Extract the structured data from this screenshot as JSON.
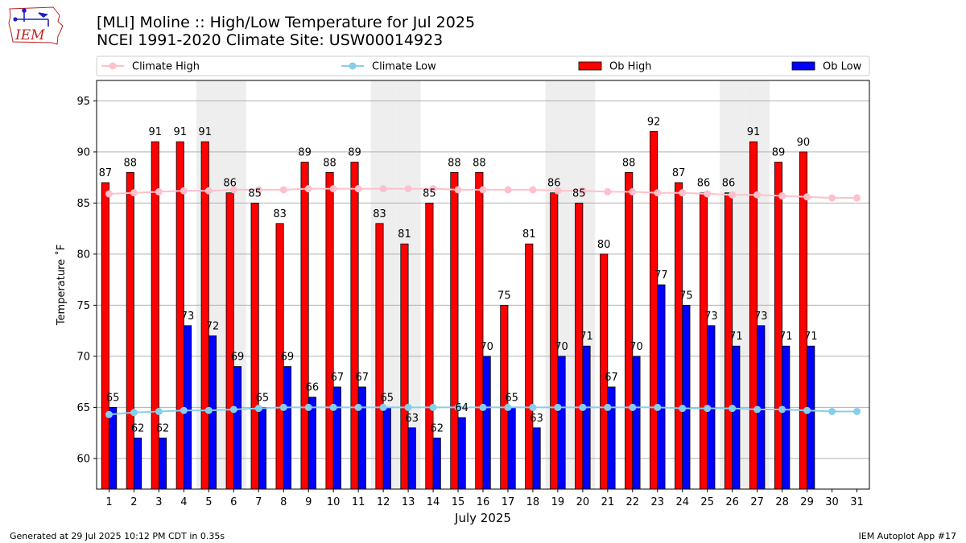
{
  "title": {
    "line1": "[MLI] Moline :: High/Low Temperature for Jul 2025",
    "line2": "NCEI 1991-2020 Climate Site: USW00014923"
  },
  "logo": {
    "text": "IEM",
    "icon": "iowa-state-outline-logo"
  },
  "footer": {
    "left": "Generated at 29 Jul 2025 10:12 PM CDT in 0.35s",
    "right": "IEM Autoplot App #17"
  },
  "chart_data": {
    "type": "bar",
    "xlabel": "July 2025",
    "ylabel": "Temperature ˚F",
    "ylim": [
      57,
      97
    ],
    "xlim": [
      0.5,
      31.5
    ],
    "yticks": [
      60,
      65,
      70,
      75,
      80,
      85,
      90,
      95
    ],
    "grid": true,
    "legend_placement": "top",
    "days": [
      1,
      2,
      3,
      4,
      5,
      6,
      7,
      8,
      9,
      10,
      11,
      12,
      13,
      14,
      15,
      16,
      17,
      18,
      19,
      20,
      21,
      22,
      23,
      24,
      25,
      26,
      27,
      28,
      29,
      30,
      31
    ],
    "weekend_days": [
      5,
      6,
      12,
      13,
      19,
      20,
      26,
      27
    ],
    "series": [
      {
        "name": "Ob High",
        "kind": "bar",
        "color": "#ff0000",
        "values": [
          87,
          88,
          91,
          91,
          91,
          86,
          85,
          83,
          89,
          88,
          89,
          83,
          81,
          85,
          88,
          88,
          75,
          81,
          86,
          85,
          80,
          88,
          92,
          87,
          86,
          86,
          91,
          89,
          90
        ]
      },
      {
        "name": "Ob Low",
        "kind": "bar",
        "color": "#0000ff",
        "values": [
          65,
          62,
          62,
          73,
          72,
          69,
          65,
          69,
          66,
          67,
          67,
          65,
          63,
          62,
          64,
          70,
          65,
          63,
          70,
          71,
          67,
          70,
          77,
          75,
          73,
          71,
          73,
          71,
          71
        ]
      },
      {
        "name": "Climate High",
        "kind": "line",
        "color": "#ffc0cb",
        "values": [
          85.9,
          86.0,
          86.1,
          86.2,
          86.2,
          86.3,
          86.3,
          86.3,
          86.4,
          86.4,
          86.4,
          86.4,
          86.4,
          86.4,
          86.3,
          86.3,
          86.3,
          86.3,
          86.2,
          86.2,
          86.1,
          86.1,
          86.0,
          86.0,
          85.9,
          85.8,
          85.8,
          85.7,
          85.6,
          85.5,
          85.5
        ]
      },
      {
        "name": "Climate Low",
        "kind": "line",
        "color": "#87ceeb",
        "values": [
          64.3,
          64.5,
          64.6,
          64.7,
          64.7,
          64.8,
          64.9,
          65.0,
          65.0,
          65.0,
          65.0,
          65.0,
          65.0,
          65.0,
          65.0,
          65.0,
          65.0,
          65.0,
          65.0,
          65.0,
          65.0,
          65.0,
          65.0,
          64.9,
          64.9,
          64.9,
          64.8,
          64.8,
          64.7,
          64.6,
          64.6
        ]
      }
    ]
  }
}
